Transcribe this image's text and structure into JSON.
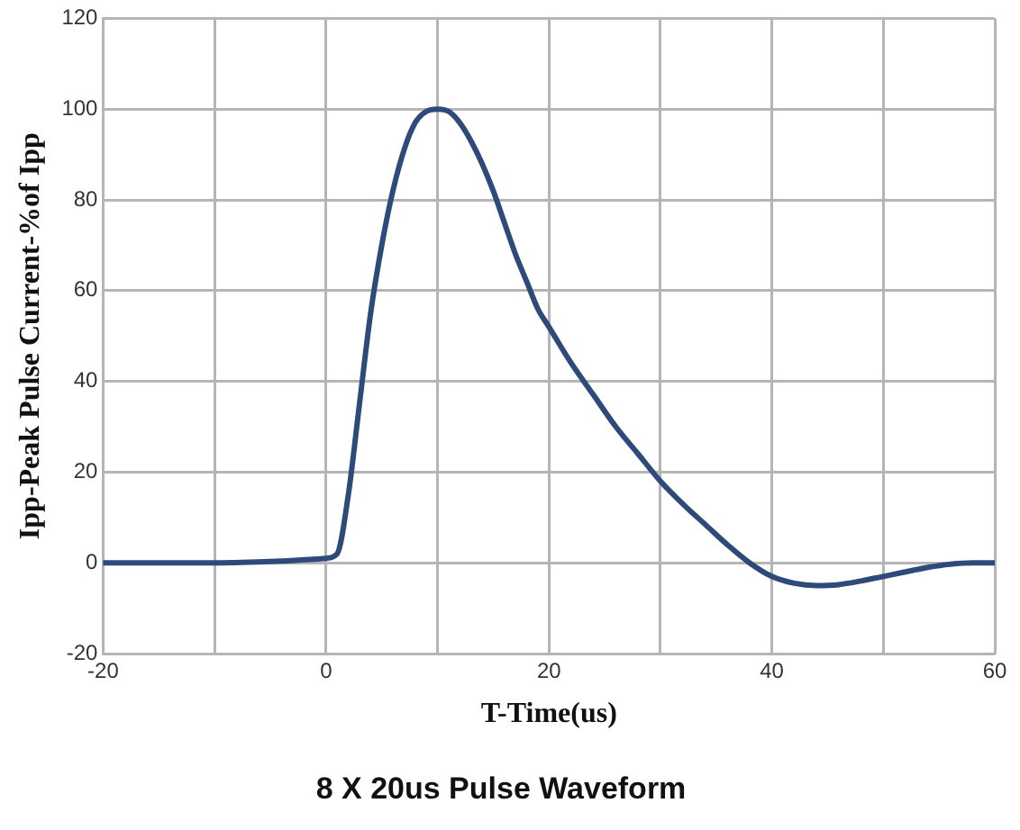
{
  "chart_data": {
    "type": "line",
    "title": "8 X 20us Pulse Waveform",
    "xlabel": "T-Time(us)",
    "ylabel": "Ipp-Peak Pulse Current-%of Ipp",
    "series": [
      {
        "color": "#2e4a7a",
        "x": [
          -20,
          -10,
          -5,
          0,
          1,
          2,
          3,
          4,
          5,
          6,
          7,
          8,
          9,
          10,
          11,
          12,
          13,
          14,
          15,
          16,
          17,
          18,
          19,
          20,
          22,
          24,
          26,
          28,
          30,
          32,
          34,
          36,
          38,
          40,
          42,
          44,
          46,
          48,
          50,
          52,
          54,
          56,
          58,
          60
        ],
        "values": [
          0,
          0,
          0.3,
          1,
          2,
          15,
          35,
          55,
          70,
          82,
          91,
          97,
          99.5,
          100,
          99.5,
          97,
          93,
          88,
          82,
          75,
          68,
          62,
          56,
          52,
          44,
          37,
          30,
          24,
          18,
          13,
          8.5,
          4,
          0,
          -3,
          -4.5,
          -5,
          -4.8,
          -4,
          -3,
          -2,
          -1,
          -0.3,
          0,
          0
        ]
      }
    ],
    "xlim": [
      -20,
      60
    ],
    "xticks": [
      -20,
      {
        "value": -10,
        "label": null
      },
      0,
      {
        "value": 10,
        "label": null
      },
      20,
      {
        "value": 30,
        "label": null
      },
      40,
      {
        "value": 50,
        "label": null
      },
      60
    ],
    "ylim": [
      -20,
      120
    ],
    "yticks": [
      -20,
      0,
      20,
      40,
      60,
      80,
      100,
      120
    ],
    "grid": true,
    "legend": false,
    "marker": "none",
    "line_style": "solid"
  }
}
